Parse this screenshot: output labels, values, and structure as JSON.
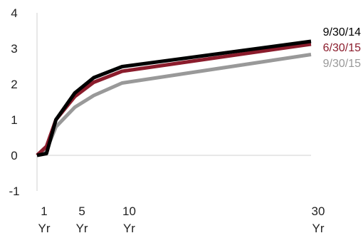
{
  "chart_data": {
    "type": "line",
    "title": "",
    "xlabel": "",
    "ylabel": "",
    "x": [
      1,
      2,
      3,
      5,
      7,
      10,
      30
    ],
    "x_tick_values": [
      1,
      5,
      10,
      30
    ],
    "x_tick_labels": [
      {
        "top": "1",
        "bottom": "Yr"
      },
      {
        "top": "5",
        "bottom": "Yr"
      },
      {
        "top": "10",
        "bottom": "Yr"
      },
      {
        "top": "30",
        "bottom": "Yr"
      }
    ],
    "y_tick_values": [
      -1,
      0,
      1,
      2,
      3,
      4
    ],
    "y_tick_labels": [
      "-1",
      "0",
      "1",
      "2",
      "3",
      "4"
    ],
    "ylim": [
      -1,
      4
    ],
    "grid": false,
    "legend_position": "right",
    "series": [
      {
        "name": "9/30/15",
        "color": "#999999",
        "values": [
          0.0,
          0.15,
          0.8,
          1.35,
          1.68,
          2.03,
          2.83
        ]
      },
      {
        "name": "6/30/15",
        "color": "#8b1c2c",
        "values": [
          0.0,
          0.25,
          1.0,
          1.65,
          2.05,
          2.36,
          3.12
        ]
      },
      {
        "name": "9/30/14",
        "color": "#000000",
        "values": [
          0.0,
          0.05,
          1.0,
          1.75,
          2.18,
          2.49,
          3.2
        ]
      }
    ],
    "legend_order": [
      2,
      1,
      0
    ]
  }
}
